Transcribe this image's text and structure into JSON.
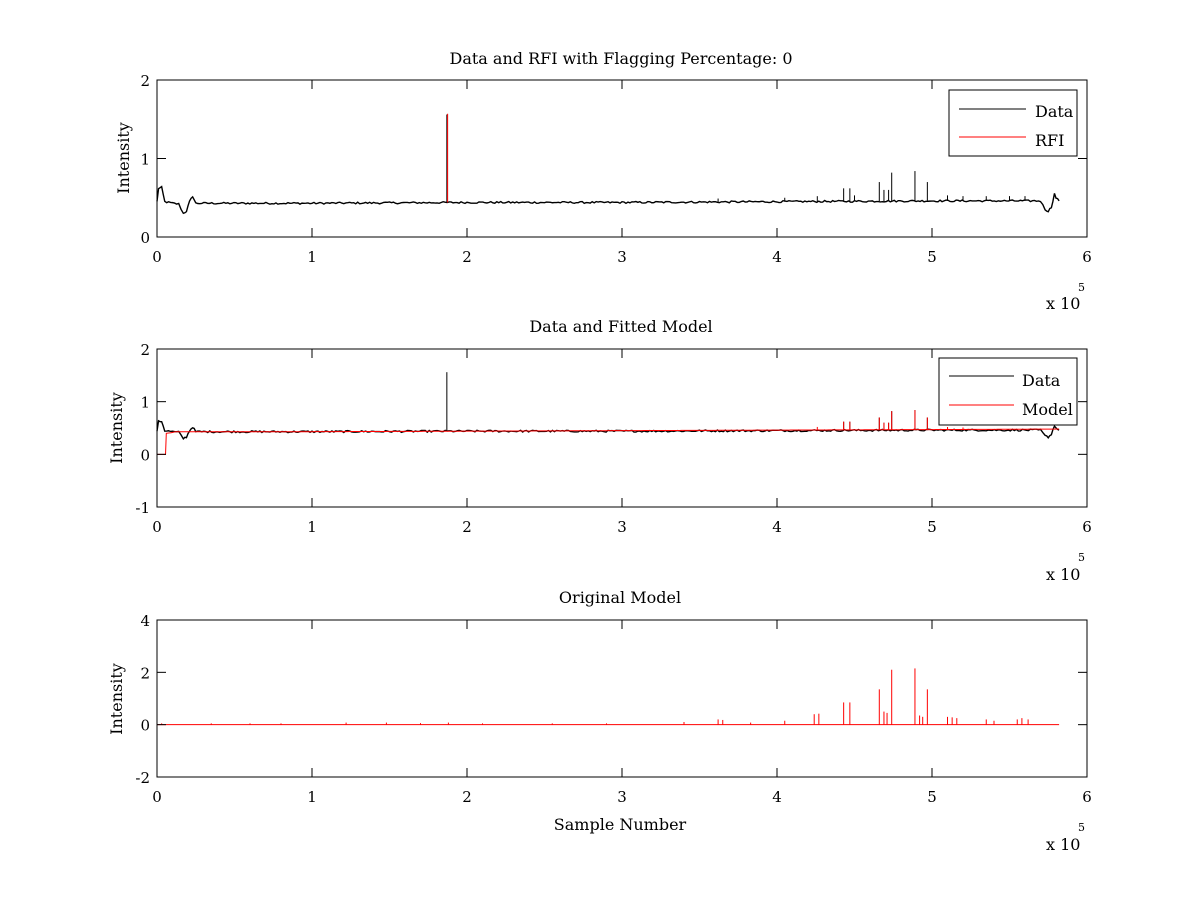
{
  "figure": {
    "background": "#ffffff",
    "axis_color": "#000000"
  },
  "chart_data": [
    {
      "type": "line",
      "title": "Data and RFI with Flagging Percentage: 0",
      "xlabel": "",
      "ylabel": "Intensity",
      "xlim": [
        0,
        6
      ],
      "ylim": [
        0,
        2
      ],
      "xticks": [
        0,
        1,
        2,
        3,
        4,
        5,
        6
      ],
      "yticks": [
        0,
        1,
        2
      ],
      "x_exponent": {
        "base": "x 10",
        "power": "5"
      },
      "legend": {
        "placement": "top-right",
        "entries": [
          "Data",
          "RFI"
        ]
      },
      "grid": false,
      "series": [
        {
          "name": "Data",
          "color": "#000000",
          "kind": "trace",
          "baseline": [
            [
              0.0,
              0.45
            ],
            [
              0.01,
              0.62
            ],
            [
              0.03,
              0.63
            ],
            [
              0.05,
              0.45
            ],
            [
              0.1,
              0.43
            ],
            [
              0.14,
              0.42
            ],
            [
              0.17,
              0.3
            ],
            [
              0.19,
              0.33
            ],
            [
              0.21,
              0.45
            ],
            [
              0.23,
              0.52
            ],
            [
              0.25,
              0.43
            ],
            [
              1.0,
              0.43
            ],
            [
              2.0,
              0.44
            ],
            [
              3.0,
              0.44
            ],
            [
              4.0,
              0.45
            ],
            [
              5.0,
              0.46
            ],
            [
              5.7,
              0.46
            ],
            [
              5.73,
              0.35
            ],
            [
              5.75,
              0.33
            ],
            [
              5.77,
              0.38
            ],
            [
              5.79,
              0.55
            ],
            [
              5.8,
              0.5
            ],
            [
              5.82,
              0.46
            ]
          ],
          "spikes": [
            [
              1.87,
              1.56
            ],
            [
              4.43,
              0.62
            ],
            [
              4.47,
              0.62
            ],
            [
              4.66,
              0.7
            ],
            [
              4.69,
              0.6
            ],
            [
              4.72,
              0.6
            ],
            [
              4.74,
              0.82
            ],
            [
              4.89,
              0.84
            ],
            [
              4.97,
              0.7
            ],
            [
              4.26,
              0.52
            ],
            [
              4.5,
              0.53
            ],
            [
              5.1,
              0.53
            ],
            [
              5.2,
              0.52
            ],
            [
              5.35,
              0.52
            ],
            [
              5.5,
              0.52
            ],
            [
              5.6,
              0.52
            ],
            [
              3.62,
              0.49
            ],
            [
              4.05,
              0.5
            ]
          ]
        },
        {
          "name": "RFI",
          "color": "#ff0000",
          "kind": "spikes",
          "spikes": [
            [
              1.875,
              1.57
            ]
          ]
        }
      ]
    },
    {
      "type": "line",
      "title": "Data and Fitted Model",
      "xlabel": "",
      "ylabel": "Intensity",
      "xlim": [
        0,
        6
      ],
      "ylim": [
        -1,
        2
      ],
      "xticks": [
        0,
        1,
        2,
        3,
        4,
        5,
        6
      ],
      "yticks": [
        -1,
        0,
        1,
        2
      ],
      "x_exponent": {
        "base": "x 10",
        "power": "5"
      },
      "legend": {
        "placement": "top-right",
        "entries": [
          "Data",
          "Model"
        ]
      },
      "grid": false,
      "series": [
        {
          "name": "Data",
          "color": "#000000",
          "kind": "trace",
          "baseline": [
            [
              0.0,
              0.45
            ],
            [
              0.01,
              0.62
            ],
            [
              0.03,
              0.63
            ],
            [
              0.05,
              0.45
            ],
            [
              0.1,
              0.43
            ],
            [
              0.14,
              0.42
            ],
            [
              0.17,
              0.3
            ],
            [
              0.19,
              0.33
            ],
            [
              0.21,
              0.45
            ],
            [
              0.23,
              0.52
            ],
            [
              0.25,
              0.43
            ],
            [
              1.0,
              0.43
            ],
            [
              2.0,
              0.44
            ],
            [
              3.0,
              0.44
            ],
            [
              4.0,
              0.45
            ],
            [
              5.0,
              0.46
            ],
            [
              5.7,
              0.46
            ],
            [
              5.73,
              0.35
            ],
            [
              5.75,
              0.33
            ],
            [
              5.77,
              0.38
            ],
            [
              5.79,
              0.55
            ],
            [
              5.8,
              0.5
            ],
            [
              5.82,
              0.46
            ]
          ],
          "spikes": [
            [
              1.87,
              1.56
            ],
            [
              4.43,
              0.62
            ],
            [
              4.47,
              0.62
            ],
            [
              4.66,
              0.7
            ],
            [
              4.69,
              0.6
            ],
            [
              4.72,
              0.6
            ],
            [
              4.74,
              0.82
            ],
            [
              4.89,
              0.84
            ],
            [
              4.97,
              0.7
            ]
          ]
        },
        {
          "name": "Model",
          "color": "#ff0000",
          "kind": "trace",
          "baseline": [
            [
              0.0,
              0.0
            ],
            [
              0.055,
              0.0
            ],
            [
              0.06,
              0.4
            ],
            [
              0.09,
              0.41
            ],
            [
              0.12,
              0.43
            ],
            [
              1.0,
              0.43
            ],
            [
              2.0,
              0.44
            ],
            [
              3.0,
              0.45
            ],
            [
              4.0,
              0.46
            ],
            [
              5.0,
              0.47
            ],
            [
              5.82,
              0.48
            ]
          ],
          "spikes": [
            [
              4.43,
              0.62
            ],
            [
              4.47,
              0.62
            ],
            [
              4.66,
              0.7
            ],
            [
              4.69,
              0.6
            ],
            [
              4.72,
              0.6
            ],
            [
              4.74,
              0.82
            ],
            [
              4.89,
              0.84
            ],
            [
              4.97,
              0.7
            ],
            [
              4.26,
              0.52
            ],
            [
              5.1,
              0.52
            ],
            [
              5.2,
              0.51
            ]
          ]
        }
      ]
    },
    {
      "type": "line",
      "title": "Original Model",
      "xlabel": "Sample Number",
      "ylabel": "Intensity",
      "xlim": [
        0,
        6
      ],
      "ylim": [
        -2,
        4
      ],
      "xticks": [
        0,
        1,
        2,
        3,
        4,
        5,
        6
      ],
      "yticks": [
        -2,
        0,
        2,
        4
      ],
      "x_exponent": {
        "base": "x 10",
        "power": "5"
      },
      "legend": null,
      "grid": false,
      "series": [
        {
          "name": "",
          "color": "#ff0000",
          "kind": "trace",
          "baseline": [
            [
              0.0,
              0.0
            ],
            [
              5.82,
              0.0
            ]
          ],
          "spikes": [
            [
              0.03,
              0.05
            ],
            [
              0.35,
              0.05
            ],
            [
              0.6,
              0.05
            ],
            [
              0.8,
              0.05
            ],
            [
              1.22,
              0.08
            ],
            [
              1.48,
              0.08
            ],
            [
              1.7,
              0.06
            ],
            [
              1.88,
              0.08
            ],
            [
              2.1,
              0.05
            ],
            [
              2.55,
              0.05
            ],
            [
              2.9,
              0.05
            ],
            [
              3.4,
              0.1
            ],
            [
              3.62,
              0.2
            ],
            [
              3.65,
              0.18
            ],
            [
              3.83,
              0.08
            ],
            [
              4.05,
              0.15
            ],
            [
              4.24,
              0.4
            ],
            [
              4.27,
              0.42
            ],
            [
              4.43,
              0.85
            ],
            [
              4.47,
              0.85
            ],
            [
              4.66,
              1.35
            ],
            [
              4.69,
              0.5
            ],
            [
              4.71,
              0.45
            ],
            [
              4.74,
              2.1
            ],
            [
              4.89,
              2.15
            ],
            [
              4.92,
              0.35
            ],
            [
              4.94,
              0.3
            ],
            [
              4.97,
              1.35
            ],
            [
              5.1,
              0.3
            ],
            [
              5.13,
              0.28
            ],
            [
              5.16,
              0.25
            ],
            [
              5.35,
              0.2
            ],
            [
              5.4,
              0.15
            ],
            [
              5.55,
              0.2
            ],
            [
              5.58,
              0.25
            ],
            [
              5.62,
              0.2
            ]
          ]
        }
      ]
    }
  ]
}
